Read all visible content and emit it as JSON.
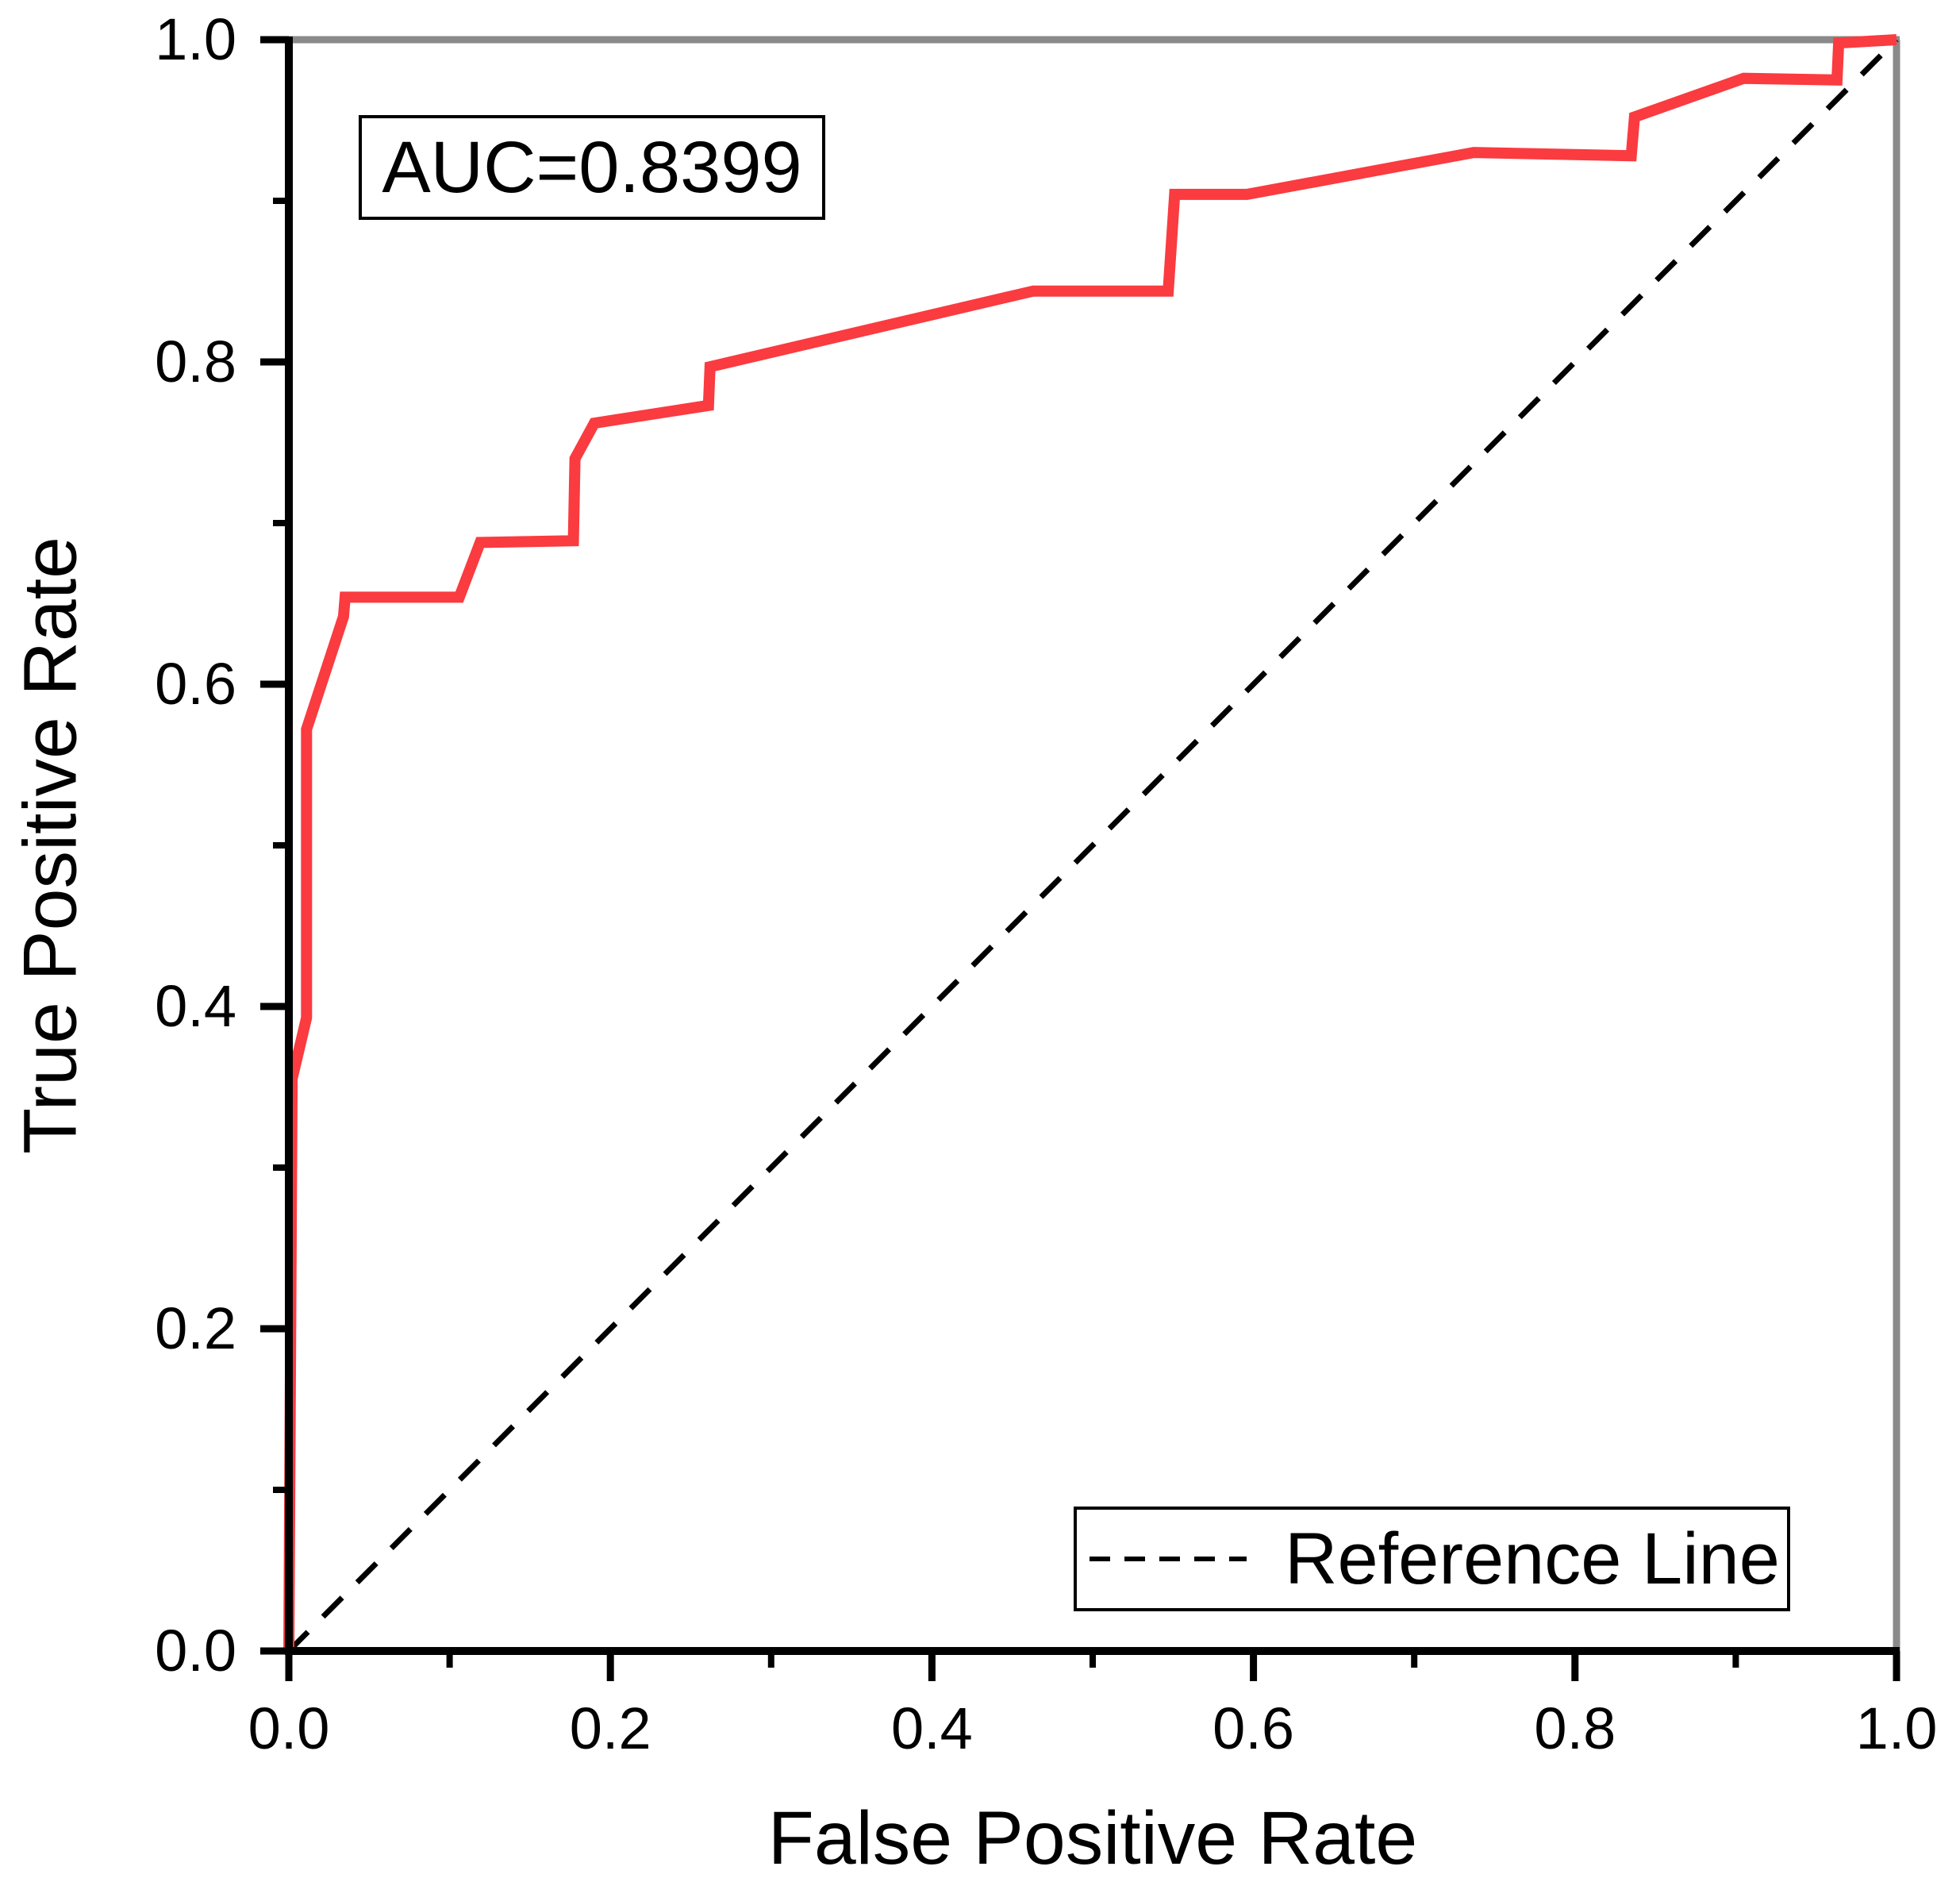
{
  "figure": {
    "background_color": "#ffffff",
    "plot_frame": {
      "axis_color": "#000000",
      "top_right_border_color": "#8a8a8a"
    }
  },
  "chart_data": {
    "type": "line",
    "title": "",
    "xlabel": "False Positive Rate",
    "ylabel": "True Positive Rate",
    "xlim": [
      0.0,
      1.0
    ],
    "ylim": [
      0.0,
      1.0
    ],
    "grid": false,
    "x_ticks": [
      0.0,
      0.2,
      0.4,
      0.6,
      0.8,
      1.0
    ],
    "y_ticks": [
      0.0,
      0.2,
      0.4,
      0.6,
      0.8,
      1.0
    ],
    "x_tick_labels": [
      "0.0",
      "0.2",
      "0.4",
      "0.6",
      "0.8",
      "1.0"
    ],
    "y_tick_labels": [
      "0.0",
      "0.2",
      "0.4",
      "0.6",
      "0.8",
      "1.0"
    ],
    "x_minor_ticks": [
      0.1,
      0.3,
      0.5,
      0.7,
      0.9
    ],
    "y_minor_ticks": [
      0.1,
      0.3,
      0.5,
      0.7,
      0.9
    ],
    "annotation": "AUC=0.8399",
    "auc_value": 0.8399,
    "legend_entries": [
      "Reference Line"
    ],
    "legend_position": "lower-right",
    "series": [
      {
        "name": "ROC curve",
        "style": "solid",
        "color": "#FA3B40",
        "points": [
          [
            0.0,
            0.0
          ],
          [
            0.002,
            0.355
          ],
          [
            0.011,
            0.393
          ],
          [
            0.011,
            0.572
          ],
          [
            0.034,
            0.642
          ],
          [
            0.035,
            0.654
          ],
          [
            0.106,
            0.654
          ],
          [
            0.119,
            0.688
          ],
          [
            0.177,
            0.689
          ],
          [
            0.178,
            0.74
          ],
          [
            0.19,
            0.762
          ],
          [
            0.261,
            0.773
          ],
          [
            0.262,
            0.797
          ],
          [
            0.463,
            0.844
          ],
          [
            0.547,
            0.844
          ],
          [
            0.551,
            0.904
          ],
          [
            0.596,
            0.904
          ],
          [
            0.737,
            0.93
          ],
          [
            0.835,
            0.928
          ],
          [
            0.837,
            0.952
          ],
          [
            0.905,
            0.976
          ],
          [
            0.963,
            0.975
          ],
          [
            0.964,
            0.998
          ],
          [
            1.0,
            1.0
          ]
        ]
      },
      {
        "name": "Reference Line",
        "style": "dashed",
        "color": "#000000",
        "points": [
          [
            0.0,
            0.0
          ],
          [
            1.0,
            1.0
          ]
        ]
      }
    ]
  }
}
